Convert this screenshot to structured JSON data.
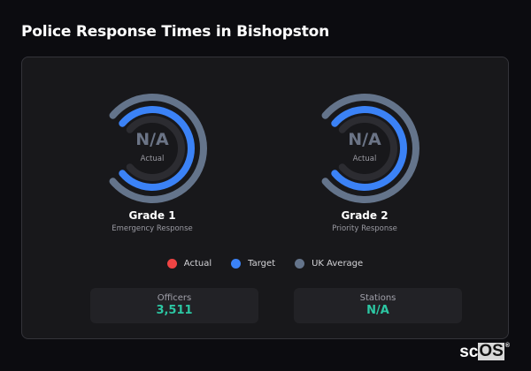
{
  "title": "Police Response Times in Bishopston",
  "gauges": [
    {
      "value": "N/A",
      "sublabel": "Actual",
      "name": "Grade 1",
      "description": "Emergency Response"
    },
    {
      "value": "N/A",
      "sublabel": "Actual",
      "name": "Grade 2",
      "description": "Priority Response"
    }
  ],
  "legend": [
    {
      "label": "Actual",
      "color": "#ef4444"
    },
    {
      "label": "Target",
      "color": "#3b82f6"
    },
    {
      "label": "UK Average",
      "color": "#64748b"
    }
  ],
  "stats": [
    {
      "label": "Officers",
      "value": "3,511"
    },
    {
      "label": "Stations",
      "value": "N/A"
    }
  ],
  "logo": {
    "text_a": "sc",
    "text_b": "OS",
    "mark": "®"
  }
}
